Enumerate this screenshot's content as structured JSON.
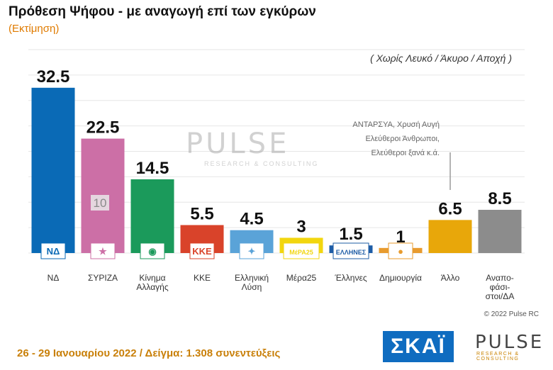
{
  "title": "Πρόθεση Ψήφου - με αναγωγή επί των εγκύρων",
  "subtitle": "(Εκτίμηση)",
  "note": "( Χωρίς Λευκό / Άκυρο / Αποχή )",
  "annotation": [
    "ΑΝΤΑΡΣΥΑ, Χρυσή Αυγή",
    "Ελεύθεροι Άνθρωποι,",
    "Ελεύθεροι ξανά      κ.ά."
  ],
  "watermark": {
    "main": "PULSE",
    "sub": "RESEARCH & CONSULTING"
  },
  "copyright": "© 2022 Pulse RC",
  "footer": "26 - 29 Ιανουαρίου 2022  /  Δείγμα:  1.308 συνεντεύξεις",
  "logos": {
    "skai": "ΣΚΑΪ",
    "pulse": "PULSE",
    "pulse_sub": "RESEARCH & CONSULTING"
  },
  "chart_data": {
    "type": "bar",
    "categories": [
      [
        "ΝΔ"
      ],
      [
        "ΣΥΡΙΖΑ"
      ],
      [
        "Κίνημα",
        "Αλλαγής"
      ],
      [
        "ΚΚΕ"
      ],
      [
        "Ελληνική",
        "Λύση"
      ],
      [
        "Μέρα25"
      ],
      [
        "Έλληνες"
      ],
      [
        "Δημιουργία"
      ],
      [
        "Άλλο"
      ],
      [
        "Αναπο-",
        "φάσι-",
        "στοι/ΔΑ"
      ]
    ],
    "values": [
      32.5,
      22.5,
      14.5,
      5.5,
      4.5,
      3,
      1.5,
      1,
      6.5,
      8.5
    ],
    "value_labels": [
      "32.5",
      "22.5",
      "14.5",
      "5.5",
      "4.5",
      "3",
      "1.5",
      "1",
      "6.5",
      "8.5"
    ],
    "colors": [
      "#0a6ab6",
      "#cc6fa6",
      "#1b9a5b",
      "#d9432a",
      "#5aa3d8",
      "#f2d60f",
      "#1d5ca6",
      "#e89b2e",
      "#e8a70a",
      "#8c8c8c"
    ],
    "party_badges": [
      "ΝΔ",
      "★",
      "◉",
      "ΚΚΕ",
      "✦",
      "ΜέΡΑ25",
      "ΕΛΛΗΝΕΣ",
      "●",
      "",
      ""
    ],
    "inline_label": "10",
    "ylim": [
      0,
      40
    ],
    "grid": true
  }
}
